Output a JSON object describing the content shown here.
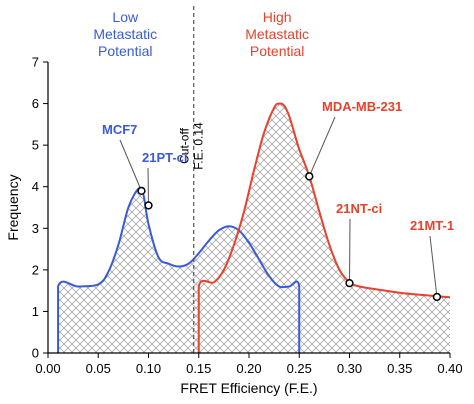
{
  "chart_data": {
    "type": "line",
    "xlabel": "FRET Efficiency (F.E.)",
    "ylabel": "Frequency",
    "xlim": [
      0,
      0.4
    ],
    "ylim": [
      0,
      7
    ],
    "x_ticks": [
      "0.00",
      "0.05",
      "0.10",
      "0.15",
      "0.20",
      "0.25",
      "0.30",
      "0.35",
      "0.40"
    ],
    "y_ticks": [
      "0",
      "1",
      "2",
      "3",
      "4",
      "5",
      "6",
      "7"
    ],
    "grid": false,
    "legend": "none",
    "hatched_region": [
      0.01,
      0.31
    ],
    "group_labels": [
      {
        "text": "Low Metastatic Potential",
        "lines": [
          "Low",
          "Metastatic",
          "Potential"
        ],
        "color": "#3a5bd9"
      },
      {
        "text": "High Metastatic Potential",
        "lines": [
          "High",
          "Metastatic",
          "Potential"
        ],
        "color": "#e8412c"
      }
    ],
    "cutoff": {
      "x": 0.145,
      "lines": [
        "Cut-off",
        "F.E. 0.14"
      ]
    },
    "series": [
      {
        "color": "#3a5bd9",
        "x": [
          0.01,
          0.01,
          0.03,
          0.05,
          0.06,
          0.07,
          0.08,
          0.09,
          0.095,
          0.1,
          0.11,
          0.12,
          0.13,
          0.14,
          0.15,
          0.16,
          0.17,
          0.18,
          0.19,
          0.2,
          0.21,
          0.22,
          0.23,
          0.24,
          0.25,
          0.25
        ],
        "y": [
          0,
          1.6,
          1.6,
          1.65,
          1.95,
          2.6,
          3.5,
          3.95,
          3.8,
          3.1,
          2.3,
          2.15,
          2.08,
          2.15,
          2.4,
          2.7,
          2.95,
          3.05,
          2.95,
          2.65,
          2.25,
          1.85,
          1.6,
          1.6,
          1.6,
          0
        ]
      },
      {
        "color": "#e8412c",
        "x": [
          0.15,
          0.15,
          0.165,
          0.175,
          0.185,
          0.195,
          0.205,
          0.215,
          0.225,
          0.23,
          0.235,
          0.24,
          0.245,
          0.25,
          0.26,
          0.27,
          0.28,
          0.29,
          0.3,
          0.31,
          0.33,
          0.35,
          0.37,
          0.39,
          0.4
        ],
        "y": [
          0,
          1.6,
          1.7,
          2.0,
          2.6,
          3.4,
          4.4,
          5.3,
          5.9,
          6.0,
          5.95,
          5.7,
          5.3,
          4.9,
          4.25,
          3.4,
          2.6,
          2.0,
          1.7,
          1.6,
          1.52,
          1.45,
          1.4,
          1.36,
          1.34
        ]
      }
    ],
    "annotations": [
      {
        "text": "MCF7",
        "x": 0.093,
        "y": 3.9,
        "color": "#3a5bd9"
      },
      {
        "text": "21PT-ci",
        "x": 0.1,
        "y": 3.55,
        "color": "#3a5bd9"
      },
      {
        "text": "MDA-MB-231",
        "x": 0.26,
        "y": 4.25,
        "color": "#e8412c"
      },
      {
        "text": "21NT-ci",
        "x": 0.3,
        "y": 1.68,
        "color": "#e8412c"
      },
      {
        "text": "21MT-1",
        "x": 0.387,
        "y": 1.35,
        "color": "#e8412c"
      }
    ]
  }
}
